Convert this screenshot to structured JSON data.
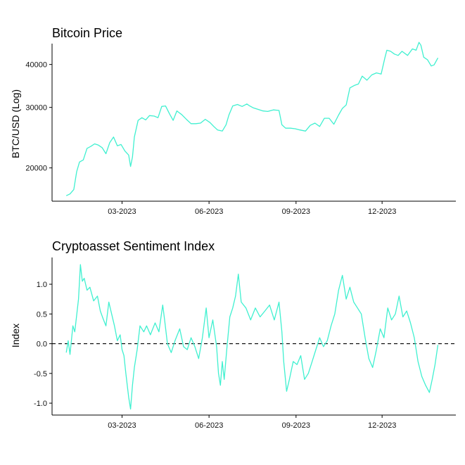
{
  "chart_data": [
    {
      "type": "line",
      "title": "Bitcoin Price",
      "ylabel": "BTC/USD (Log)",
      "y_scale": "log",
      "ylim": [
        16000,
        46000
      ],
      "y_ticks": [
        20000,
        30000,
        40000
      ],
      "y_tick_labels": [
        "20000",
        "30000",
        "40000"
      ],
      "x_tick_labels": [
        "03-2023",
        "06-2023",
        "09-2023",
        "12-2023"
      ],
      "xlim": [
        "2022-12-17",
        "2024-02-17"
      ],
      "color": "#40f0d0",
      "series": [
        {
          "x": [
            "2023-01-01",
            "2023-01-05",
            "2023-01-09",
            "2023-01-12",
            "2023-01-15",
            "2023-01-19",
            "2023-01-23",
            "2023-01-27",
            "2023-01-31",
            "2023-02-04",
            "2023-02-08",
            "2023-02-12",
            "2023-02-16",
            "2023-02-20",
            "2023-02-24",
            "2023-02-28",
            "2023-03-04",
            "2023-03-08",
            "2023-03-10",
            "2023-03-12",
            "2023-03-14",
            "2023-03-18",
            "2023-03-22",
            "2023-03-26",
            "2023-03-30",
            "2023-04-04",
            "2023-04-08",
            "2023-04-12",
            "2023-04-16",
            "2023-04-20",
            "2023-04-24",
            "2023-04-28",
            "2023-05-03",
            "2023-05-08",
            "2023-05-13",
            "2023-05-18",
            "2023-05-23",
            "2023-05-28",
            "2023-06-02",
            "2023-06-06",
            "2023-06-10",
            "2023-06-15",
            "2023-06-19",
            "2023-06-22",
            "2023-06-26",
            "2023-07-01",
            "2023-07-06",
            "2023-07-11",
            "2023-07-14",
            "2023-07-18",
            "2023-07-23",
            "2023-07-28",
            "2023-08-02",
            "2023-08-08",
            "2023-08-14",
            "2023-08-17",
            "2023-08-21",
            "2023-08-26",
            "2023-08-31",
            "2023-09-05",
            "2023-09-11",
            "2023-09-16",
            "2023-09-21",
            "2023-09-26",
            "2023-10-01",
            "2023-10-06",
            "2023-10-11",
            "2023-10-16",
            "2023-10-20",
            "2023-10-24",
            "2023-10-28",
            "2023-11-02",
            "2023-11-06",
            "2023-11-10",
            "2023-11-15",
            "2023-11-20",
            "2023-11-25",
            "2023-11-30",
            "2023-12-04",
            "2023-12-06",
            "2023-12-10",
            "2023-12-14",
            "2023-12-18",
            "2023-12-22",
            "2023-12-28",
            "2024-01-02",
            "2024-01-06",
            "2024-01-09",
            "2024-01-11",
            "2024-01-14",
            "2024-01-18",
            "2024-01-22",
            "2024-01-25",
            "2024-01-29"
          ],
          "values": [
            16600,
            16800,
            17300,
            19500,
            20800,
            21100,
            22800,
            23100,
            23500,
            23300,
            22900,
            22000,
            23700,
            24600,
            23200,
            23400,
            22400,
            21800,
            20200,
            21500,
            24600,
            27500,
            28000,
            27600,
            28400,
            28300,
            28000,
            30200,
            30300,
            28800,
            27500,
            29300,
            28600,
            27700,
            26900,
            26900,
            27000,
            27700,
            27100,
            26400,
            25800,
            25600,
            26700,
            28500,
            30300,
            30600,
            30200,
            30700,
            30300,
            29900,
            29600,
            29300,
            29200,
            29500,
            29400,
            26700,
            26100,
            26100,
            26000,
            25800,
            25600,
            26600,
            27000,
            26400,
            27900,
            27900,
            26800,
            28500,
            29800,
            30500,
            34200,
            34800,
            35100,
            37000,
            36000,
            37300,
            37800,
            37500,
            41900,
            44000,
            43700,
            42900,
            42500,
            43700,
            42500,
            44400,
            44000,
            46400,
            45500,
            42000,
            41300,
            39600,
            39900,
            41800
          ]
        }
      ]
    },
    {
      "type": "line",
      "title": "Cryptoasset Sentiment Index",
      "ylabel": "Index",
      "ylim": [
        -1.2,
        1.45
      ],
      "y_ticks": [
        -1.0,
        -0.5,
        0.0,
        0.5,
        1.0
      ],
      "y_tick_labels": [
        "-1.0",
        "-0.5",
        "0.0",
        "0.5",
        "1.0"
      ],
      "x_tick_labels": [
        "03-2023",
        "06-2023",
        "09-2023",
        "12-2023"
      ],
      "xlim": [
        "2022-12-17",
        "2024-02-17"
      ],
      "reference_line": {
        "y": 0,
        "style": "dashed"
      },
      "color": "#40f0d0",
      "series": [
        {
          "x": [
            "2023-01-01",
            "2023-01-03",
            "2023-01-05",
            "2023-01-08",
            "2023-01-10",
            "2023-01-14",
            "2023-01-16",
            "2023-01-18",
            "2023-01-20",
            "2023-01-23",
            "2023-01-26",
            "2023-01-30",
            "2023-02-03",
            "2023-02-06",
            "2023-02-09",
            "2023-02-12",
            "2023-02-15",
            "2023-02-18",
            "2023-02-21",
            "2023-02-24",
            "2023-02-27",
            "2023-03-01",
            "2023-03-03",
            "2023-03-05",
            "2023-03-08",
            "2023-03-10",
            "2023-03-12",
            "2023-03-14",
            "2023-03-17",
            "2023-03-20",
            "2023-03-24",
            "2023-03-27",
            "2023-03-31",
            "2023-04-05",
            "2023-04-09",
            "2023-04-13",
            "2023-04-15",
            "2023-04-18",
            "2023-04-22",
            "2023-04-26",
            "2023-05-01",
            "2023-05-05",
            "2023-05-09",
            "2023-05-13",
            "2023-05-17",
            "2023-05-21",
            "2023-05-25",
            "2023-05-29",
            "2023-06-01",
            "2023-06-05",
            "2023-06-09",
            "2023-06-11",
            "2023-06-13",
            "2023-06-15",
            "2023-06-17",
            "2023-06-20",
            "2023-06-23",
            "2023-06-26",
            "2023-06-29",
            "2023-07-02",
            "2023-07-05",
            "2023-07-10",
            "2023-07-15",
            "2023-07-20",
            "2023-07-25",
            "2023-07-30",
            "2023-08-04",
            "2023-08-09",
            "2023-08-14",
            "2023-08-17",
            "2023-08-19",
            "2023-08-22",
            "2023-08-25",
            "2023-08-29",
            "2023-09-02",
            "2023-09-06",
            "2023-09-10",
            "2023-09-14",
            "2023-09-18",
            "2023-09-22",
            "2023-09-26",
            "2023-09-30",
            "2023-10-04",
            "2023-10-08",
            "2023-10-12",
            "2023-10-16",
            "2023-10-20",
            "2023-10-24",
            "2023-10-28",
            "2023-11-01",
            "2023-11-05",
            "2023-11-09",
            "2023-11-13",
            "2023-11-17",
            "2023-11-21",
            "2023-11-25",
            "2023-11-29",
            "2023-12-03",
            "2023-12-07",
            "2023-12-11",
            "2023-12-15",
            "2023-12-19",
            "2023-12-23",
            "2023-12-27",
            "2023-12-31",
            "2024-01-04",
            "2024-01-08",
            "2024-01-12",
            "2024-01-16",
            "2024-01-20",
            "2024-01-23",
            "2024-01-26",
            "2024-01-29"
          ],
          "values": [
            -0.15,
            0.05,
            -0.18,
            0.3,
            0.2,
            0.75,
            1.33,
            1.05,
            1.1,
            0.9,
            0.95,
            0.72,
            0.8,
            0.55,
            0.42,
            0.3,
            0.7,
            0.5,
            0.3,
            0.05,
            0.15,
            -0.1,
            -0.2,
            -0.5,
            -0.9,
            -1.1,
            -0.7,
            -0.4,
            -0.1,
            0.3,
            0.2,
            0.3,
            0.15,
            0.35,
            0.2,
            0.65,
            0.4,
            0.0,
            -0.15,
            0.05,
            0.25,
            -0.05,
            -0.1,
            0.1,
            -0.05,
            -0.25,
            0.1,
            0.6,
            0.1,
            0.4,
            -0.05,
            -0.5,
            -0.7,
            -0.3,
            -0.6,
            -0.05,
            0.45,
            0.6,
            0.8,
            1.17,
            0.7,
            0.6,
            0.4,
            0.6,
            0.45,
            0.55,
            0.65,
            0.4,
            0.7,
            0.2,
            -0.3,
            -0.8,
            -0.6,
            -0.3,
            -0.35,
            -0.2,
            -0.6,
            -0.5,
            -0.3,
            -0.1,
            0.1,
            -0.05,
            0.05,
            0.3,
            0.5,
            0.9,
            1.15,
            0.75,
            0.95,
            0.7,
            0.6,
            0.5,
            0.1,
            -0.25,
            -0.4,
            -0.1,
            0.25,
            0.1,
            0.6,
            0.4,
            0.5,
            0.8,
            0.45,
            0.55,
            0.35,
            0.1,
            -0.3,
            -0.55,
            -0.7,
            -0.82,
            -0.6,
            -0.35,
            -0.02
          ]
        }
      ]
    }
  ]
}
